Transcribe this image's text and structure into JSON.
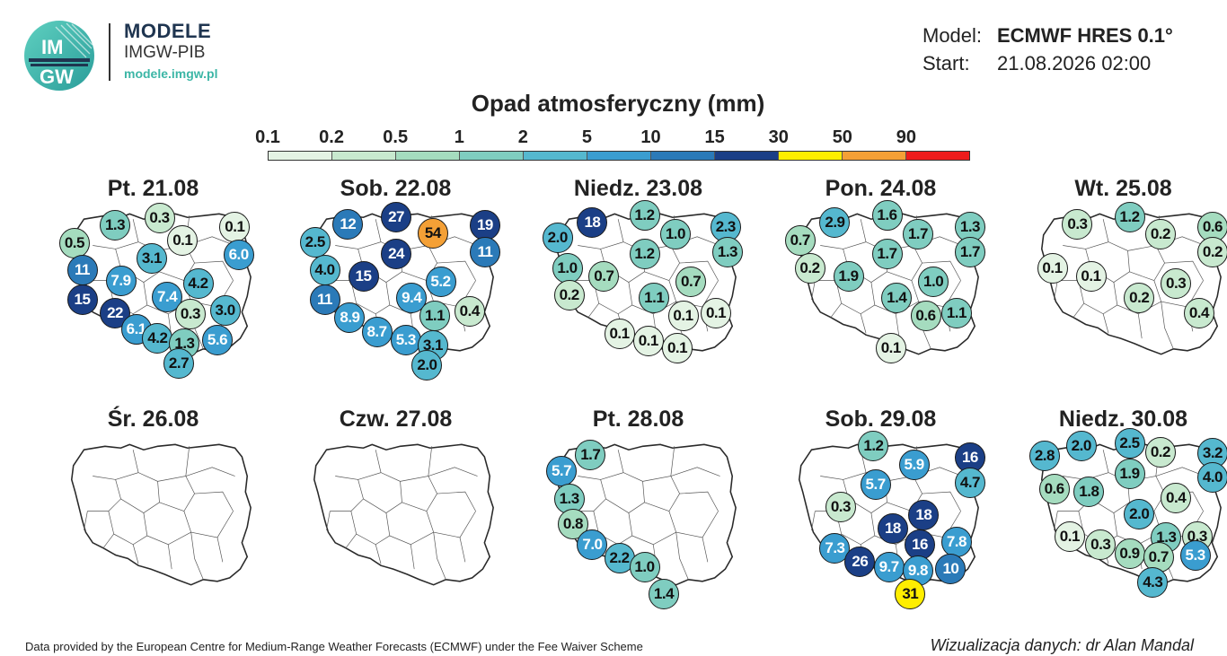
{
  "brand": {
    "logo_text_top": "IM",
    "logo_text_bottom": "GW",
    "title": "MODELE",
    "subtitle": "IMGW-PIB",
    "url": "modele.imgw.pl"
  },
  "meta": {
    "model_label": "Model:",
    "model_value": "ECMWF HRES 0.1°",
    "start_label": "Start:",
    "start_value": "21.08.2026 02:00"
  },
  "legend": {
    "title": "Opad atmosferyczny (mm)",
    "ticks": [
      "0.1",
      "0.2",
      "0.5",
      "1",
      "2",
      "5",
      "10",
      "15",
      "30",
      "50",
      "90"
    ],
    "colors": [
      "#e4f3e4",
      "#c8e9cf",
      "#a5dcbf",
      "#7fcdc0",
      "#55b8cf",
      "#3a9dd0",
      "#2b7ab8",
      "#1b3f86",
      "#ffee00",
      "#f4a036",
      "#ee1c1c"
    ]
  },
  "scale": {
    "thresholds": [
      0.1,
      0.2,
      0.5,
      1,
      2,
      5,
      10,
      15,
      30,
      50,
      90
    ],
    "text_dark": "#111111",
    "text_light": "#ffffff"
  },
  "panels": [
    {
      "title": "Pt. 21.08",
      "markers": [
        {
          "v": "1.3",
          "x": 0.27,
          "y": 0.13
        },
        {
          "v": "0.3",
          "x": 0.5,
          "y": 0.08
        },
        {
          "v": "0.1",
          "x": 0.89,
          "y": 0.14
        },
        {
          "v": "0.5",
          "x": 0.06,
          "y": 0.25
        },
        {
          "v": "0.1",
          "x": 0.62,
          "y": 0.23
        },
        {
          "v": "6.0",
          "x": 0.91,
          "y": 0.33
        },
        {
          "v": "3.1",
          "x": 0.46,
          "y": 0.35
        },
        {
          "v": "11",
          "x": 0.1,
          "y": 0.43
        },
        {
          "v": "7.9",
          "x": 0.3,
          "y": 0.5
        },
        {
          "v": "4.2",
          "x": 0.7,
          "y": 0.52
        },
        {
          "v": "15",
          "x": 0.1,
          "y": 0.63
        },
        {
          "v": "7.4",
          "x": 0.54,
          "y": 0.61
        },
        {
          "v": "22",
          "x": 0.27,
          "y": 0.72
        },
        {
          "v": "0.3",
          "x": 0.66,
          "y": 0.73
        },
        {
          "v": "3.0",
          "x": 0.84,
          "y": 0.7
        },
        {
          "v": "6.1",
          "x": 0.38,
          "y": 0.83
        },
        {
          "v": "4.2",
          "x": 0.49,
          "y": 0.89
        },
        {
          "v": "1.3",
          "x": 0.63,
          "y": 0.93
        },
        {
          "v": "5.6",
          "x": 0.8,
          "y": 0.9
        },
        {
          "v": "2.7",
          "x": 0.6,
          "y": 1.06
        }
      ]
    },
    {
      "title": "Sob. 22.08",
      "markers": [
        {
          "v": "27",
          "x": 0.47,
          "y": 0.07
        },
        {
          "v": "12",
          "x": 0.22,
          "y": 0.12
        },
        {
          "v": "54",
          "x": 0.66,
          "y": 0.18
        },
        {
          "v": "19",
          "x": 0.93,
          "y": 0.13
        },
        {
          "v": "2.5",
          "x": 0.05,
          "y": 0.24
        },
        {
          "v": "11",
          "x": 0.93,
          "y": 0.31
        },
        {
          "v": "24",
          "x": 0.47,
          "y": 0.32
        },
        {
          "v": "4.0",
          "x": 0.1,
          "y": 0.43
        },
        {
          "v": "15",
          "x": 0.3,
          "y": 0.47
        },
        {
          "v": "5.2",
          "x": 0.7,
          "y": 0.51
        },
        {
          "v": "11",
          "x": 0.1,
          "y": 0.63
        },
        {
          "v": "9.4",
          "x": 0.55,
          "y": 0.62
        },
        {
          "v": "1.1",
          "x": 0.67,
          "y": 0.74
        },
        {
          "v": "0.4",
          "x": 0.85,
          "y": 0.71
        },
        {
          "v": "8.9",
          "x": 0.23,
          "y": 0.75
        },
        {
          "v": "8.7",
          "x": 0.37,
          "y": 0.85
        },
        {
          "v": "5.3",
          "x": 0.52,
          "y": 0.9
        },
        {
          "v": "3.1",
          "x": 0.66,
          "y": 0.94
        },
        {
          "v": "2.0",
          "x": 0.63,
          "y": 1.07
        }
      ]
    },
    {
      "title": "Niedz. 23.08",
      "markers": [
        {
          "v": "18",
          "x": 0.23,
          "y": 0.11
        },
        {
          "v": "1.2",
          "x": 0.5,
          "y": 0.06
        },
        {
          "v": "2.3",
          "x": 0.92,
          "y": 0.14
        },
        {
          "v": "2.0",
          "x": 0.05,
          "y": 0.21
        },
        {
          "v": "1.0",
          "x": 0.66,
          "y": 0.19
        },
        {
          "v": "1.3",
          "x": 0.93,
          "y": 0.31
        },
        {
          "v": "1.2",
          "x": 0.5,
          "y": 0.32
        },
        {
          "v": "1.0",
          "x": 0.1,
          "y": 0.42
        },
        {
          "v": "0.7",
          "x": 0.29,
          "y": 0.47
        },
        {
          "v": "0.7",
          "x": 0.74,
          "y": 0.51
        },
        {
          "v": "0.2",
          "x": 0.11,
          "y": 0.6
        },
        {
          "v": "1.1",
          "x": 0.55,
          "y": 0.62
        },
        {
          "v": "0.1",
          "x": 0.7,
          "y": 0.74
        },
        {
          "v": "0.1",
          "x": 0.87,
          "y": 0.72
        },
        {
          "v": "0.1",
          "x": 0.37,
          "y": 0.86
        },
        {
          "v": "0.1",
          "x": 0.52,
          "y": 0.91
        },
        {
          "v": "0.1",
          "x": 0.67,
          "y": 0.96
        }
      ]
    },
    {
      "title": "Pon. 24.08",
      "markers": [
        {
          "v": "2.9",
          "x": 0.23,
          "y": 0.11
        },
        {
          "v": "1.6",
          "x": 0.5,
          "y": 0.06
        },
        {
          "v": "1.3",
          "x": 0.93,
          "y": 0.14
        },
        {
          "v": "0.7",
          "x": 0.05,
          "y": 0.23
        },
        {
          "v": "1.7",
          "x": 0.66,
          "y": 0.19
        },
        {
          "v": "1.7",
          "x": 0.93,
          "y": 0.31
        },
        {
          "v": "1.7",
          "x": 0.5,
          "y": 0.32
        },
        {
          "v": "0.2",
          "x": 0.1,
          "y": 0.42
        },
        {
          "v": "1.9",
          "x": 0.3,
          "y": 0.47
        },
        {
          "v": "1.0",
          "x": 0.74,
          "y": 0.51
        },
        {
          "v": "1.4",
          "x": 0.55,
          "y": 0.62
        },
        {
          "v": "0.6",
          "x": 0.7,
          "y": 0.74
        },
        {
          "v": "1.1",
          "x": 0.86,
          "y": 0.72
        },
        {
          "v": "0.1",
          "x": 0.52,
          "y": 0.96
        }
      ]
    },
    {
      "title": "Wt. 25.08",
      "markers": [
        {
          "v": "0.3",
          "x": 0.23,
          "y": 0.12
        },
        {
          "v": "1.2",
          "x": 0.5,
          "y": 0.07
        },
        {
          "v": "0.6",
          "x": 0.93,
          "y": 0.14
        },
        {
          "v": "0.2",
          "x": 0.66,
          "y": 0.19
        },
        {
          "v": "0.2",
          "x": 0.93,
          "y": 0.31
        },
        {
          "v": "0.1",
          "x": 0.1,
          "y": 0.42
        },
        {
          "v": "0.1",
          "x": 0.3,
          "y": 0.47
        },
        {
          "v": "0.3",
          "x": 0.74,
          "y": 0.52
        },
        {
          "v": "0.2",
          "x": 0.55,
          "y": 0.62
        },
        {
          "v": "0.4",
          "x": 0.86,
          "y": 0.72
        }
      ]
    },
    {
      "title": "Śr. 26.08",
      "markers": []
    },
    {
      "title": "Czw. 27.08",
      "markers": []
    },
    {
      "title": "Pt. 28.08",
      "markers": [
        {
          "v": "1.7",
          "x": 0.22,
          "y": 0.12
        },
        {
          "v": "5.7",
          "x": 0.07,
          "y": 0.23
        },
        {
          "v": "1.3",
          "x": 0.11,
          "y": 0.42
        },
        {
          "v": "0.8",
          "x": 0.13,
          "y": 0.59
        },
        {
          "v": "7.0",
          "x": 0.23,
          "y": 0.73
        },
        {
          "v": "2.2",
          "x": 0.37,
          "y": 0.82
        },
        {
          "v": "1.0",
          "x": 0.5,
          "y": 0.88
        },
        {
          "v": "1.4",
          "x": 0.6,
          "y": 1.06
        }
      ]
    },
    {
      "title": "Sob. 29.08",
      "markers": [
        {
          "v": "1.2",
          "x": 0.43,
          "y": 0.06
        },
        {
          "v": "16",
          "x": 0.93,
          "y": 0.14
        },
        {
          "v": "5.9",
          "x": 0.64,
          "y": 0.19
        },
        {
          "v": "4.7",
          "x": 0.93,
          "y": 0.31
        },
        {
          "v": "5.7",
          "x": 0.44,
          "y": 0.32
        },
        {
          "v": "0.3",
          "x": 0.26,
          "y": 0.47
        },
        {
          "v": "18",
          "x": 0.69,
          "y": 0.53
        },
        {
          "v": "18",
          "x": 0.53,
          "y": 0.62
        },
        {
          "v": "16",
          "x": 0.67,
          "y": 0.73
        },
        {
          "v": "7.8",
          "x": 0.86,
          "y": 0.71
        },
        {
          "v": "7.3",
          "x": 0.23,
          "y": 0.75
        },
        {
          "v": "26",
          "x": 0.36,
          "y": 0.84
        },
        {
          "v": "9.7",
          "x": 0.51,
          "y": 0.88
        },
        {
          "v": "9.8",
          "x": 0.66,
          "y": 0.9
        },
        {
          "v": "10",
          "x": 0.83,
          "y": 0.89
        },
        {
          "v": "31",
          "x": 0.62,
          "y": 1.06
        }
      ]
    },
    {
      "title": "Niedz. 30.08",
      "markers": [
        {
          "v": "2.0",
          "x": 0.25,
          "y": 0.06
        },
        {
          "v": "2.5",
          "x": 0.5,
          "y": 0.04
        },
        {
          "v": "3.2",
          "x": 0.93,
          "y": 0.11
        },
        {
          "v": "2.8",
          "x": 0.06,
          "y": 0.13
        },
        {
          "v": "0.2",
          "x": 0.66,
          "y": 0.1
        },
        {
          "v": "4.0",
          "x": 0.93,
          "y": 0.27
        },
        {
          "v": "1.9",
          "x": 0.5,
          "y": 0.25
        },
        {
          "v": "0.6",
          "x": 0.11,
          "y": 0.35
        },
        {
          "v": "1.8",
          "x": 0.29,
          "y": 0.37
        },
        {
          "v": "0.4",
          "x": 0.74,
          "y": 0.41
        },
        {
          "v": "2.0",
          "x": 0.55,
          "y": 0.52
        },
        {
          "v": "0.1",
          "x": 0.19,
          "y": 0.67
        },
        {
          "v": "0.3",
          "x": 0.35,
          "y": 0.73
        },
        {
          "v": "1.3",
          "x": 0.69,
          "y": 0.68
        },
        {
          "v": "0.3",
          "x": 0.85,
          "y": 0.67
        },
        {
          "v": "0.9",
          "x": 0.5,
          "y": 0.79
        },
        {
          "v": "0.7",
          "x": 0.65,
          "y": 0.81
        },
        {
          "v": "5.3",
          "x": 0.84,
          "y": 0.8
        },
        {
          "v": "4.3",
          "x": 0.62,
          "y": 0.98
        }
      ]
    }
  ],
  "footer": {
    "note": "Data provided by the European Centre for Medium-Range Weather Forecasts (ECMWF) under the Fee Waiver Scheme",
    "credits": "Wizualizacja danych: dr Alan Mandal"
  }
}
